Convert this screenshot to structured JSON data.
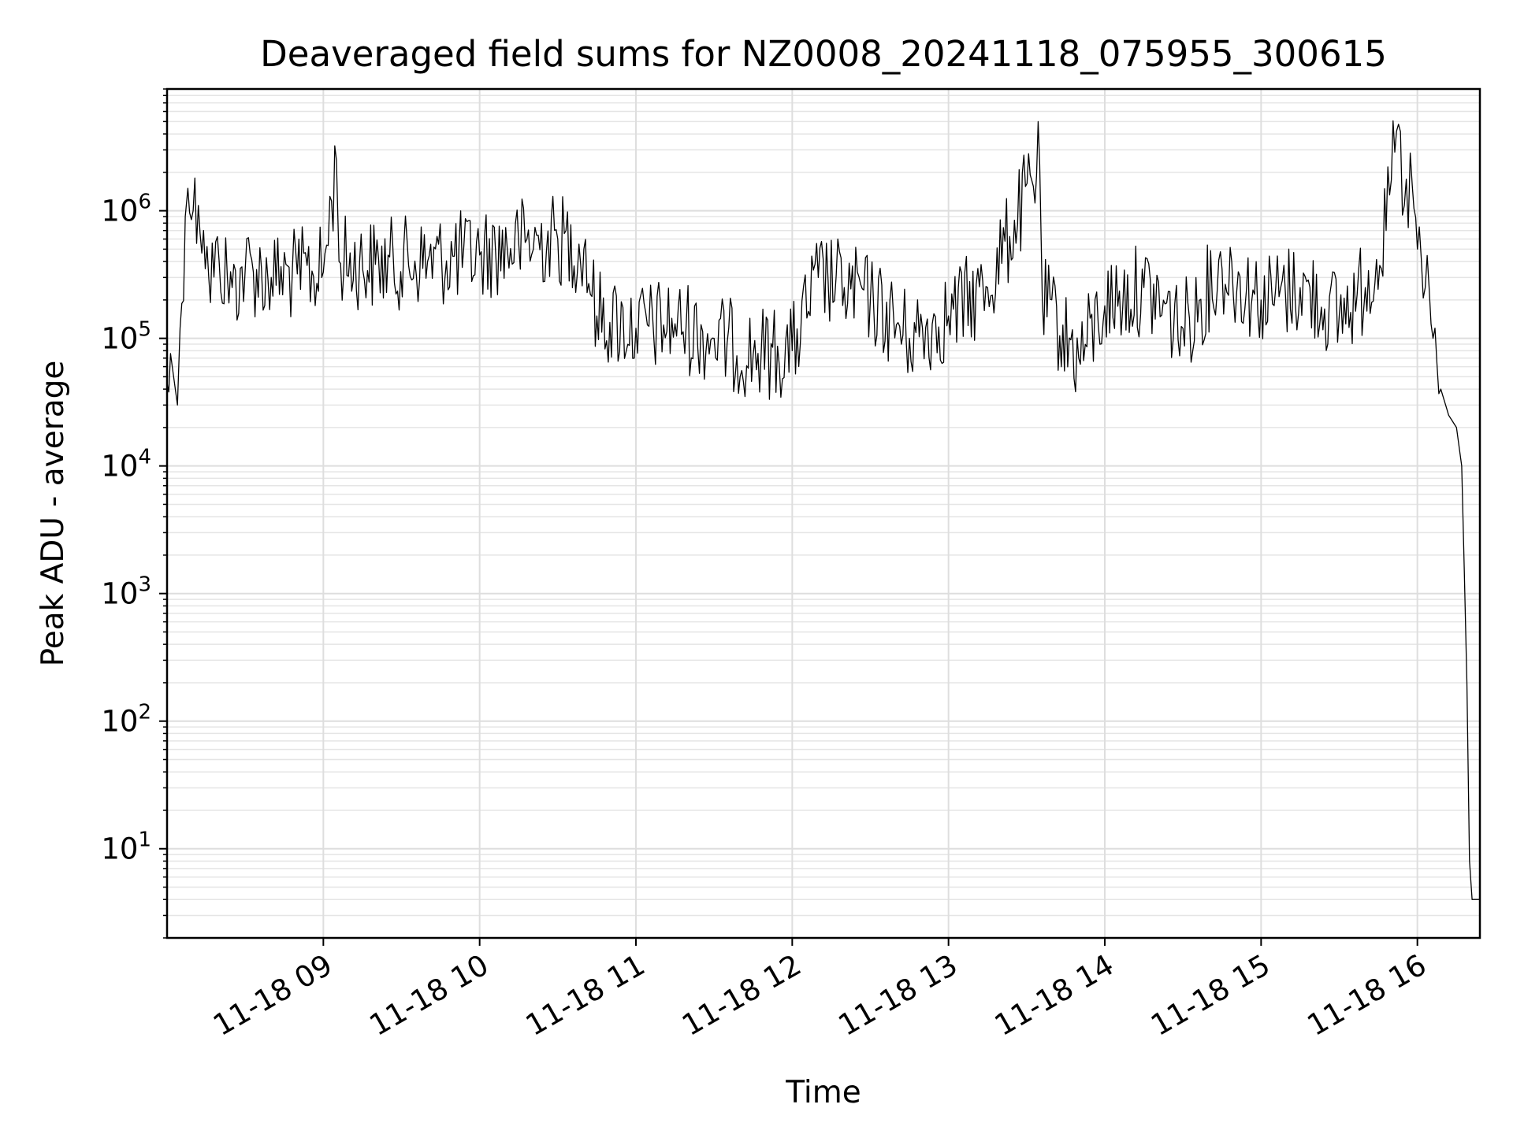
{
  "chart_data": {
    "type": "line",
    "title": "Deaveraged field sums for NZ0008_20241118_075955_300615",
    "xlabel": "Time",
    "ylabel": "Peak ADU - average",
    "yscale": "log",
    "ylim": [
      2,
      9000000
    ],
    "xlim": [
      "2024-11-18 08:00",
      "2024-11-18 16:24"
    ],
    "grid": "on (major and minor)",
    "line_color": "#000000",
    "x_ticks": [
      {
        "label": "11-18 09",
        "time": "2024-11-18 09:00"
      },
      {
        "label": "11-18 10",
        "time": "2024-11-18 10:00"
      },
      {
        "label": "11-18 11",
        "time": "2024-11-18 11:00"
      },
      {
        "label": "11-18 12",
        "time": "2024-11-18 12:00"
      },
      {
        "label": "11-18 13",
        "time": "2024-11-18 13:00"
      },
      {
        "label": "11-18 14",
        "time": "2024-11-18 14:00"
      },
      {
        "label": "11-18 15",
        "time": "2024-11-18 15:00"
      },
      {
        "label": "11-18 16",
        "time": "2024-11-18 16:00"
      }
    ],
    "y_ticks": [
      {
        "base": "10",
        "exp": "1",
        "value": 10
      },
      {
        "base": "10",
        "exp": "2",
        "value": 100
      },
      {
        "base": "10",
        "exp": "3",
        "value": 1000
      },
      {
        "base": "10",
        "exp": "4",
        "value": 10000
      },
      {
        "base": "10",
        "exp": "5",
        "value": 100000
      },
      {
        "base": "10",
        "exp": "6",
        "value": 1000000
      }
    ],
    "series": [
      {
        "points": [
          [
            "2024-11-18 08:00",
            45000
          ],
          [
            "2024-11-18 08:02",
            60000
          ],
          [
            "2024-11-18 08:04",
            30000
          ],
          [
            "2024-11-18 08:05",
            120000
          ],
          [
            "2024-11-18 08:07",
            900000
          ],
          [
            "2024-11-18 08:08",
            1500000
          ],
          [
            "2024-11-18 08:10",
            1000000
          ],
          [
            "2024-11-18 08:12",
            1100000
          ],
          [
            "2024-11-18 08:14",
            700000
          ],
          [
            "2024-11-18 08:16",
            300000
          ],
          [
            "2024-11-18 08:20",
            400000
          ],
          [
            "2024-11-18 08:25",
            250000
          ],
          [
            "2024-11-18 08:30",
            350000
          ],
          [
            "2024-11-18 08:40",
            300000
          ],
          [
            "2024-11-18 08:50",
            320000
          ],
          [
            "2024-11-18 09:00",
            330000
          ],
          [
            "2024-11-18 09:05",
            2500000
          ],
          [
            "2024-11-18 09:06",
            400000
          ],
          [
            "2024-11-18 09:20",
            380000
          ],
          [
            "2024-11-18 09:40",
            400000
          ],
          [
            "2024-11-18 10:00",
            450000
          ],
          [
            "2024-11-18 10:15",
            550000
          ],
          [
            "2024-11-18 10:30",
            600000
          ],
          [
            "2024-11-18 10:40",
            500000
          ],
          [
            "2024-11-18 10:45",
            150000
          ],
          [
            "2024-11-18 11:00",
            120000
          ],
          [
            "2024-11-18 11:15",
            130000
          ],
          [
            "2024-11-18 11:30",
            100000
          ],
          [
            "2024-11-18 11:45",
            75000
          ],
          [
            "2024-11-18 12:00",
            80000
          ],
          [
            "2024-11-18 12:10",
            300000
          ],
          [
            "2024-11-18 12:20",
            250000
          ],
          [
            "2024-11-18 12:30",
            200000
          ],
          [
            "2024-11-18 12:45",
            100000
          ],
          [
            "2024-11-18 13:00",
            150000
          ],
          [
            "2024-11-18 13:15",
            250000
          ],
          [
            "2024-11-18 13:35",
            2300000
          ],
          [
            "2024-11-18 13:36",
            200000
          ],
          [
            "2024-11-18 13:50",
            70000
          ],
          [
            "2024-11-18 14:00",
            180000
          ],
          [
            "2024-11-18 14:15",
            250000
          ],
          [
            "2024-11-18 14:30",
            120000
          ],
          [
            "2024-11-18 14:45",
            350000
          ],
          [
            "2024-11-18 15:00",
            200000
          ],
          [
            "2024-11-18 15:15",
            250000
          ],
          [
            "2024-11-18 15:30",
            150000
          ],
          [
            "2024-11-18 15:40",
            250000
          ],
          [
            "2024-11-18 15:48",
            700000
          ],
          [
            "2024-11-18 15:52",
            4200000
          ],
          [
            "2024-11-18 15:55",
            1100000
          ],
          [
            "2024-11-18 15:58",
            1600000
          ],
          [
            "2024-11-18 16:00",
            500000
          ],
          [
            "2024-11-18 16:03",
            250000
          ],
          [
            "2024-11-18 16:06",
            100000
          ],
          [
            "2024-11-18 16:09",
            40000
          ],
          [
            "2024-11-18 16:12",
            25000
          ],
          [
            "2024-11-18 16:15",
            20000
          ],
          [
            "2024-11-18 16:17",
            10000
          ],
          [
            "2024-11-18 16:18",
            1500
          ],
          [
            "2024-11-18 16:19",
            200
          ],
          [
            "2024-11-18 16:20",
            8
          ],
          [
            "2024-11-18 16:21",
            4
          ],
          [
            "2024-11-18 16:24",
            4
          ]
        ]
      }
    ]
  }
}
